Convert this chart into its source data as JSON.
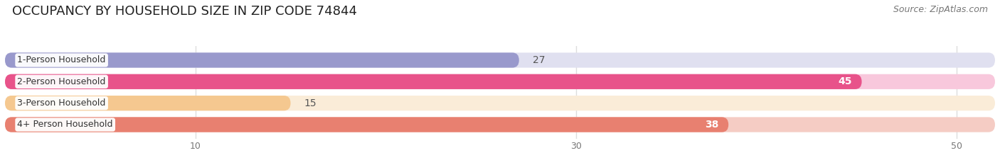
{
  "title": "OCCUPANCY BY HOUSEHOLD SIZE IN ZIP CODE 74844",
  "source": "Source: ZipAtlas.com",
  "categories": [
    "1-Person Household",
    "2-Person Household",
    "3-Person Household",
    "4+ Person Household"
  ],
  "values": [
    27,
    45,
    15,
    38
  ],
  "bar_colors": [
    "#9999cc",
    "#e8538a",
    "#f5c890",
    "#e88070"
  ],
  "bar_bg_colors": [
    "#e0e0f0",
    "#f8c8dc",
    "#faecd8",
    "#f5ccc4"
  ],
  "label_colors": [
    "#333333",
    "#ffffff",
    "#333333",
    "#ffffff"
  ],
  "xlim": [
    0,
    52
  ],
  "xticks": [
    10,
    30,
    50
  ],
  "title_fontsize": 13,
  "source_fontsize": 9,
  "label_fontsize": 9,
  "bar_label_fontsize": 10,
  "background_color": "#ffffff",
  "grid_color": "#dddddd"
}
